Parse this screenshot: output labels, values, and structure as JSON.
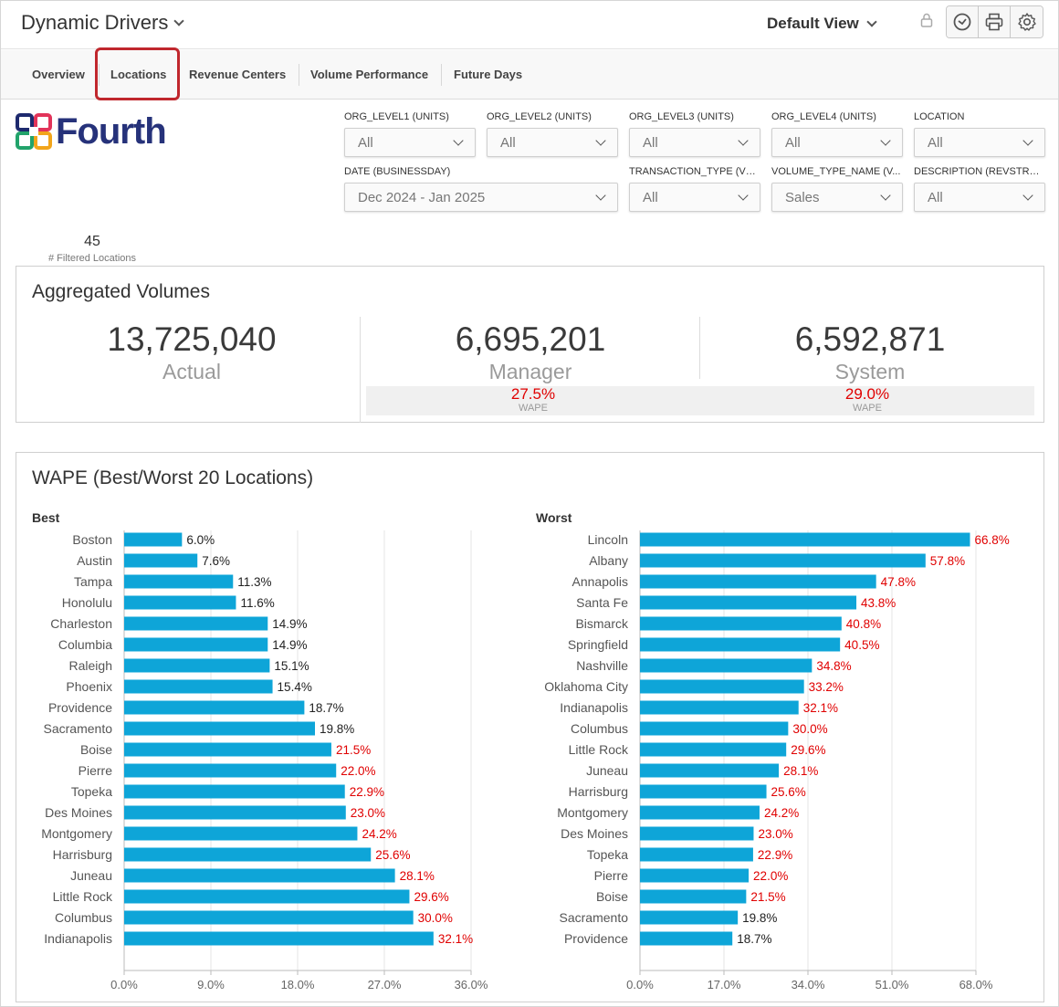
{
  "header": {
    "title": "Dynamic Drivers",
    "view": "Default View",
    "tools": [
      "lock-icon",
      "clock-icon",
      "print-icon",
      "gear-icon"
    ]
  },
  "tabs": [
    "Overview",
    "Locations",
    "Revenue Centers",
    "Volume Performance",
    "Future Days"
  ],
  "active_tab": "Locations",
  "logo": {
    "text": "Fourth"
  },
  "filters": [
    {
      "label": "ORG_LEVEL1 (UNITS)",
      "value": "All"
    },
    {
      "label": "ORG_LEVEL2 (UNITS)",
      "value": "All"
    },
    {
      "label": "ORG_LEVEL3 (UNITS)",
      "value": "All"
    },
    {
      "label": "ORG_LEVEL4 (UNITS)",
      "value": "All"
    },
    {
      "label": "LOCATION",
      "value": "All"
    },
    {
      "label": "DATE (BUSINESSDAY)",
      "value": "Dec 2024 - Jan 2025"
    },
    {
      "label": "TRANSACTION_TYPE (VO...",
      "value": "All"
    },
    {
      "label": "VOLUME_TYPE_NAME (V...",
      "value": "Sales"
    },
    {
      "label": "DESCRIPTION (REVSTREA...",
      "value": "All"
    }
  ],
  "filtered": {
    "count": "45",
    "label": "# Filtered Locations"
  },
  "aggregated": {
    "title": "Aggregated Volumes",
    "actual": {
      "value": "13,725,040",
      "label": "Actual"
    },
    "manager": {
      "value": "6,695,201",
      "label": "Manager",
      "wape": "27.5%",
      "wape_label": "WAPE"
    },
    "system": {
      "value": "6,592,871",
      "label": "System",
      "wape": "29.0%",
      "wape_label": "WAPE"
    }
  },
  "wape_section": {
    "title": "WAPE (Best/Worst 20 Locations)"
  },
  "colors": {
    "bar": "#0ea5d8",
    "bad_label": "#e00000",
    "good_label": "#222222",
    "tab_highlight": "#c0272d"
  },
  "chart_data": [
    {
      "type": "bar",
      "orientation": "horizontal",
      "subtitle": "Best",
      "categories": [
        "Boston",
        "Austin",
        "Tampa",
        "Honolulu",
        "Charleston",
        "Columbia",
        "Raleigh",
        "Phoenix",
        "Providence",
        "Sacramento",
        "Boise",
        "Pierre",
        "Topeka",
        "Des Moines",
        "Montgomery",
        "Harrisburg",
        "Juneau",
        "Little Rock",
        "Columbus",
        "Indianapolis"
      ],
      "values": [
        6.0,
        7.6,
        11.3,
        11.6,
        14.9,
        14.9,
        15.1,
        15.4,
        18.7,
        19.8,
        21.5,
        22.0,
        22.9,
        23.0,
        24.2,
        25.6,
        28.1,
        29.6,
        30.0,
        32.1
      ],
      "value_labels": [
        "6.0%",
        "7.6%",
        "11.3%",
        "11.6%",
        "14.9%",
        "14.9%",
        "15.1%",
        "15.4%",
        "18.7%",
        "19.8%",
        "21.5%",
        "22.0%",
        "22.9%",
        "23.0%",
        "24.2%",
        "25.6%",
        "28.1%",
        "29.6%",
        "30.0%",
        "32.1%"
      ],
      "xlim": [
        0,
        36
      ],
      "ticks": [
        0,
        9,
        18,
        27,
        36
      ],
      "tick_labels": [
        "0.0%",
        "9.0%",
        "18.0%",
        "27.0%",
        "36.0%"
      ],
      "label_threshold": 20
    },
    {
      "type": "bar",
      "orientation": "horizontal",
      "subtitle": "Worst",
      "categories": [
        "Lincoln",
        "Albany",
        "Annapolis",
        "Santa Fe",
        "Bismarck",
        "Springfield",
        "Nashville",
        "Oklahoma City",
        "Indianapolis",
        "Columbus",
        "Little Rock",
        "Juneau",
        "Harrisburg",
        "Montgomery",
        "Des Moines",
        "Topeka",
        "Pierre",
        "Boise",
        "Sacramento",
        "Providence"
      ],
      "values": [
        66.8,
        57.8,
        47.8,
        43.8,
        40.8,
        40.5,
        34.8,
        33.2,
        32.1,
        30.0,
        29.6,
        28.1,
        25.6,
        24.2,
        23.0,
        22.9,
        22.0,
        21.5,
        19.8,
        18.7
      ],
      "value_labels": [
        "66.8%",
        "57.8%",
        "47.8%",
        "43.8%",
        "40.8%",
        "40.5%",
        "34.8%",
        "33.2%",
        "32.1%",
        "30.0%",
        "29.6%",
        "28.1%",
        "25.6%",
        "24.2%",
        "23.0%",
        "22.9%",
        "22.0%",
        "21.5%",
        "19.8%",
        "18.7%"
      ],
      "xlim": [
        0,
        68
      ],
      "ticks": [
        0,
        17,
        34,
        51,
        68
      ],
      "tick_labels": [
        "0.0%",
        "17.0%",
        "34.0%",
        "51.0%",
        "68.0%"
      ],
      "label_threshold": 20
    }
  ]
}
